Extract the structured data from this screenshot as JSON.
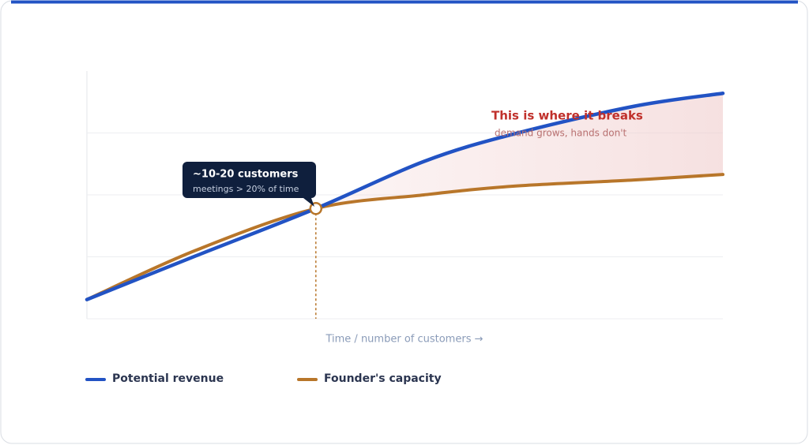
{
  "chart_data": {
    "type": "line",
    "x_label": "Time / number of customers →",
    "x": [
      0,
      17,
      36,
      53,
      67,
      86,
      100
    ],
    "xlim": [
      0,
      100
    ],
    "ylim": [
      0,
      4
    ],
    "yticks": [
      0,
      1,
      2,
      3
    ],
    "grid": true,
    "series": [
      {
        "name": "Potential revenue",
        "color": "#2253c4",
        "values": [
          0.31,
          1.01,
          1.78,
          2.54,
          2.98,
          3.43,
          3.64
        ]
      },
      {
        "name": "Founder's capacity",
        "color": "#b8762a",
        "values": [
          0.31,
          1.1,
          1.78,
          2.0,
          2.14,
          2.24,
          2.33
        ]
      }
    ],
    "callout": {
      "title": "~10-20 customers",
      "subtitle": "meetings > 20% of time"
    },
    "annotation": {
      "title": "This is where it breaks",
      "subtitle": "demand grows, hands don't"
    }
  }
}
